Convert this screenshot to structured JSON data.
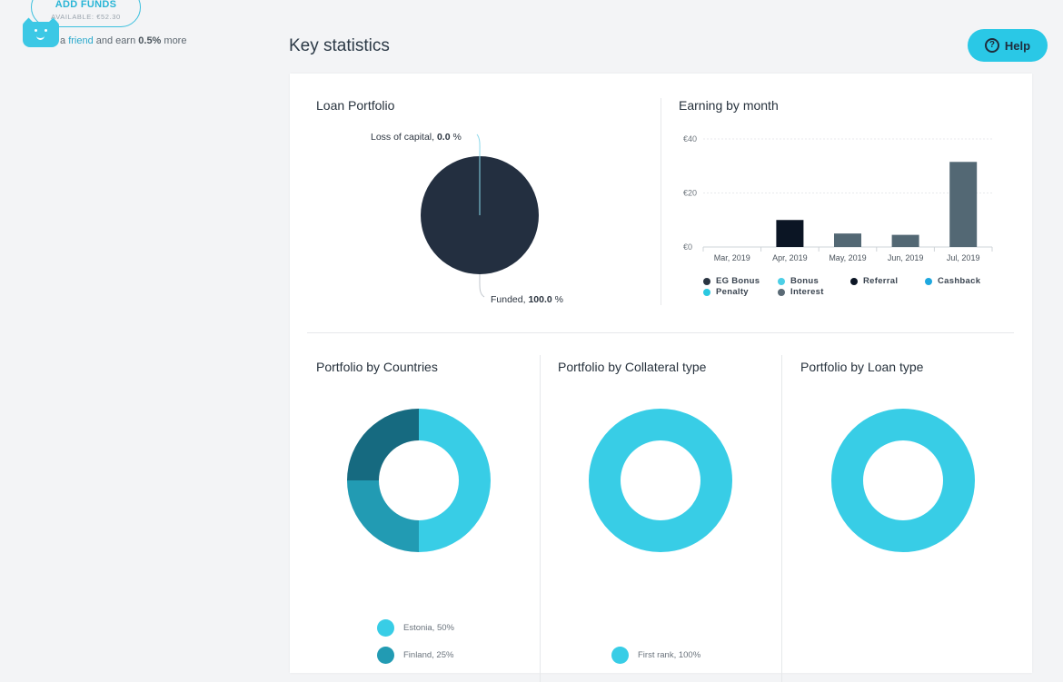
{
  "top": {
    "add_funds_label": "ADD FUNDS",
    "available": "AVAILABLE: €52.30",
    "refer_prefix": "a ",
    "refer_link": "friend",
    "refer_mid": " and earn ",
    "refer_bold": "0.5%",
    "refer_suffix": " more"
  },
  "page_title": "Key statistics",
  "help_label": "Help",
  "loan_portfolio": {
    "title": "Loan Portfolio",
    "loss_label": "Loss of capital, ",
    "loss_value": "0.0",
    "loss_unit": " %",
    "funded_label": "Funded, ",
    "funded_value": "100.0",
    "funded_unit": " %",
    "color": "#232f40"
  },
  "earning": {
    "title": "Earning by month",
    "legend": [
      {
        "label": "EG Bonus",
        "color": "#2a3441"
      },
      {
        "label": "Bonus",
        "color": "#4ccfe6"
      },
      {
        "label": "Referral",
        "color": "#0b1524"
      },
      {
        "label": "Cashback",
        "color": "#1ea8df"
      },
      {
        "label": "Penalty",
        "color": "#2ac8e0"
      },
      {
        "label": "Interest",
        "color": "#5a6a75"
      }
    ]
  },
  "chart_data": {
    "type": "bar",
    "title": "Earning by month",
    "categories": [
      "Mar, 2019",
      "Apr, 2019",
      "May, 2019",
      "Jun, 2019",
      "Jul, 2019"
    ],
    "series": [
      {
        "name": "Referral",
        "values": [
          0,
          10,
          0,
          0,
          0
        ],
        "color": "#0b1524"
      },
      {
        "name": "Interest",
        "values": [
          0,
          0,
          5,
          4.5,
          31.5
        ],
        "color": "#536874"
      }
    ],
    "y_ticks": [
      "€0",
      "€20",
      "€40"
    ],
    "ylim": [
      0,
      40
    ]
  },
  "countries": {
    "title": "Portfolio by Countries",
    "slices": [
      {
        "label": "Estonia, 50%",
        "value": 50,
        "color": "#38cde6"
      },
      {
        "label": "Finland, 25%",
        "value": 25,
        "color": "#229bb3"
      },
      {
        "label": "",
        "value": 25,
        "color": "#166a80"
      }
    ]
  },
  "collateral": {
    "title": "Portfolio by Collateral type",
    "slices": [
      {
        "label": "First rank, 100%",
        "value": 100,
        "color": "#38cde6"
      }
    ]
  },
  "loan_type": {
    "title": "Portfolio by Loan type",
    "slices": [
      {
        "value": 100,
        "color": "#38cde6"
      }
    ]
  }
}
